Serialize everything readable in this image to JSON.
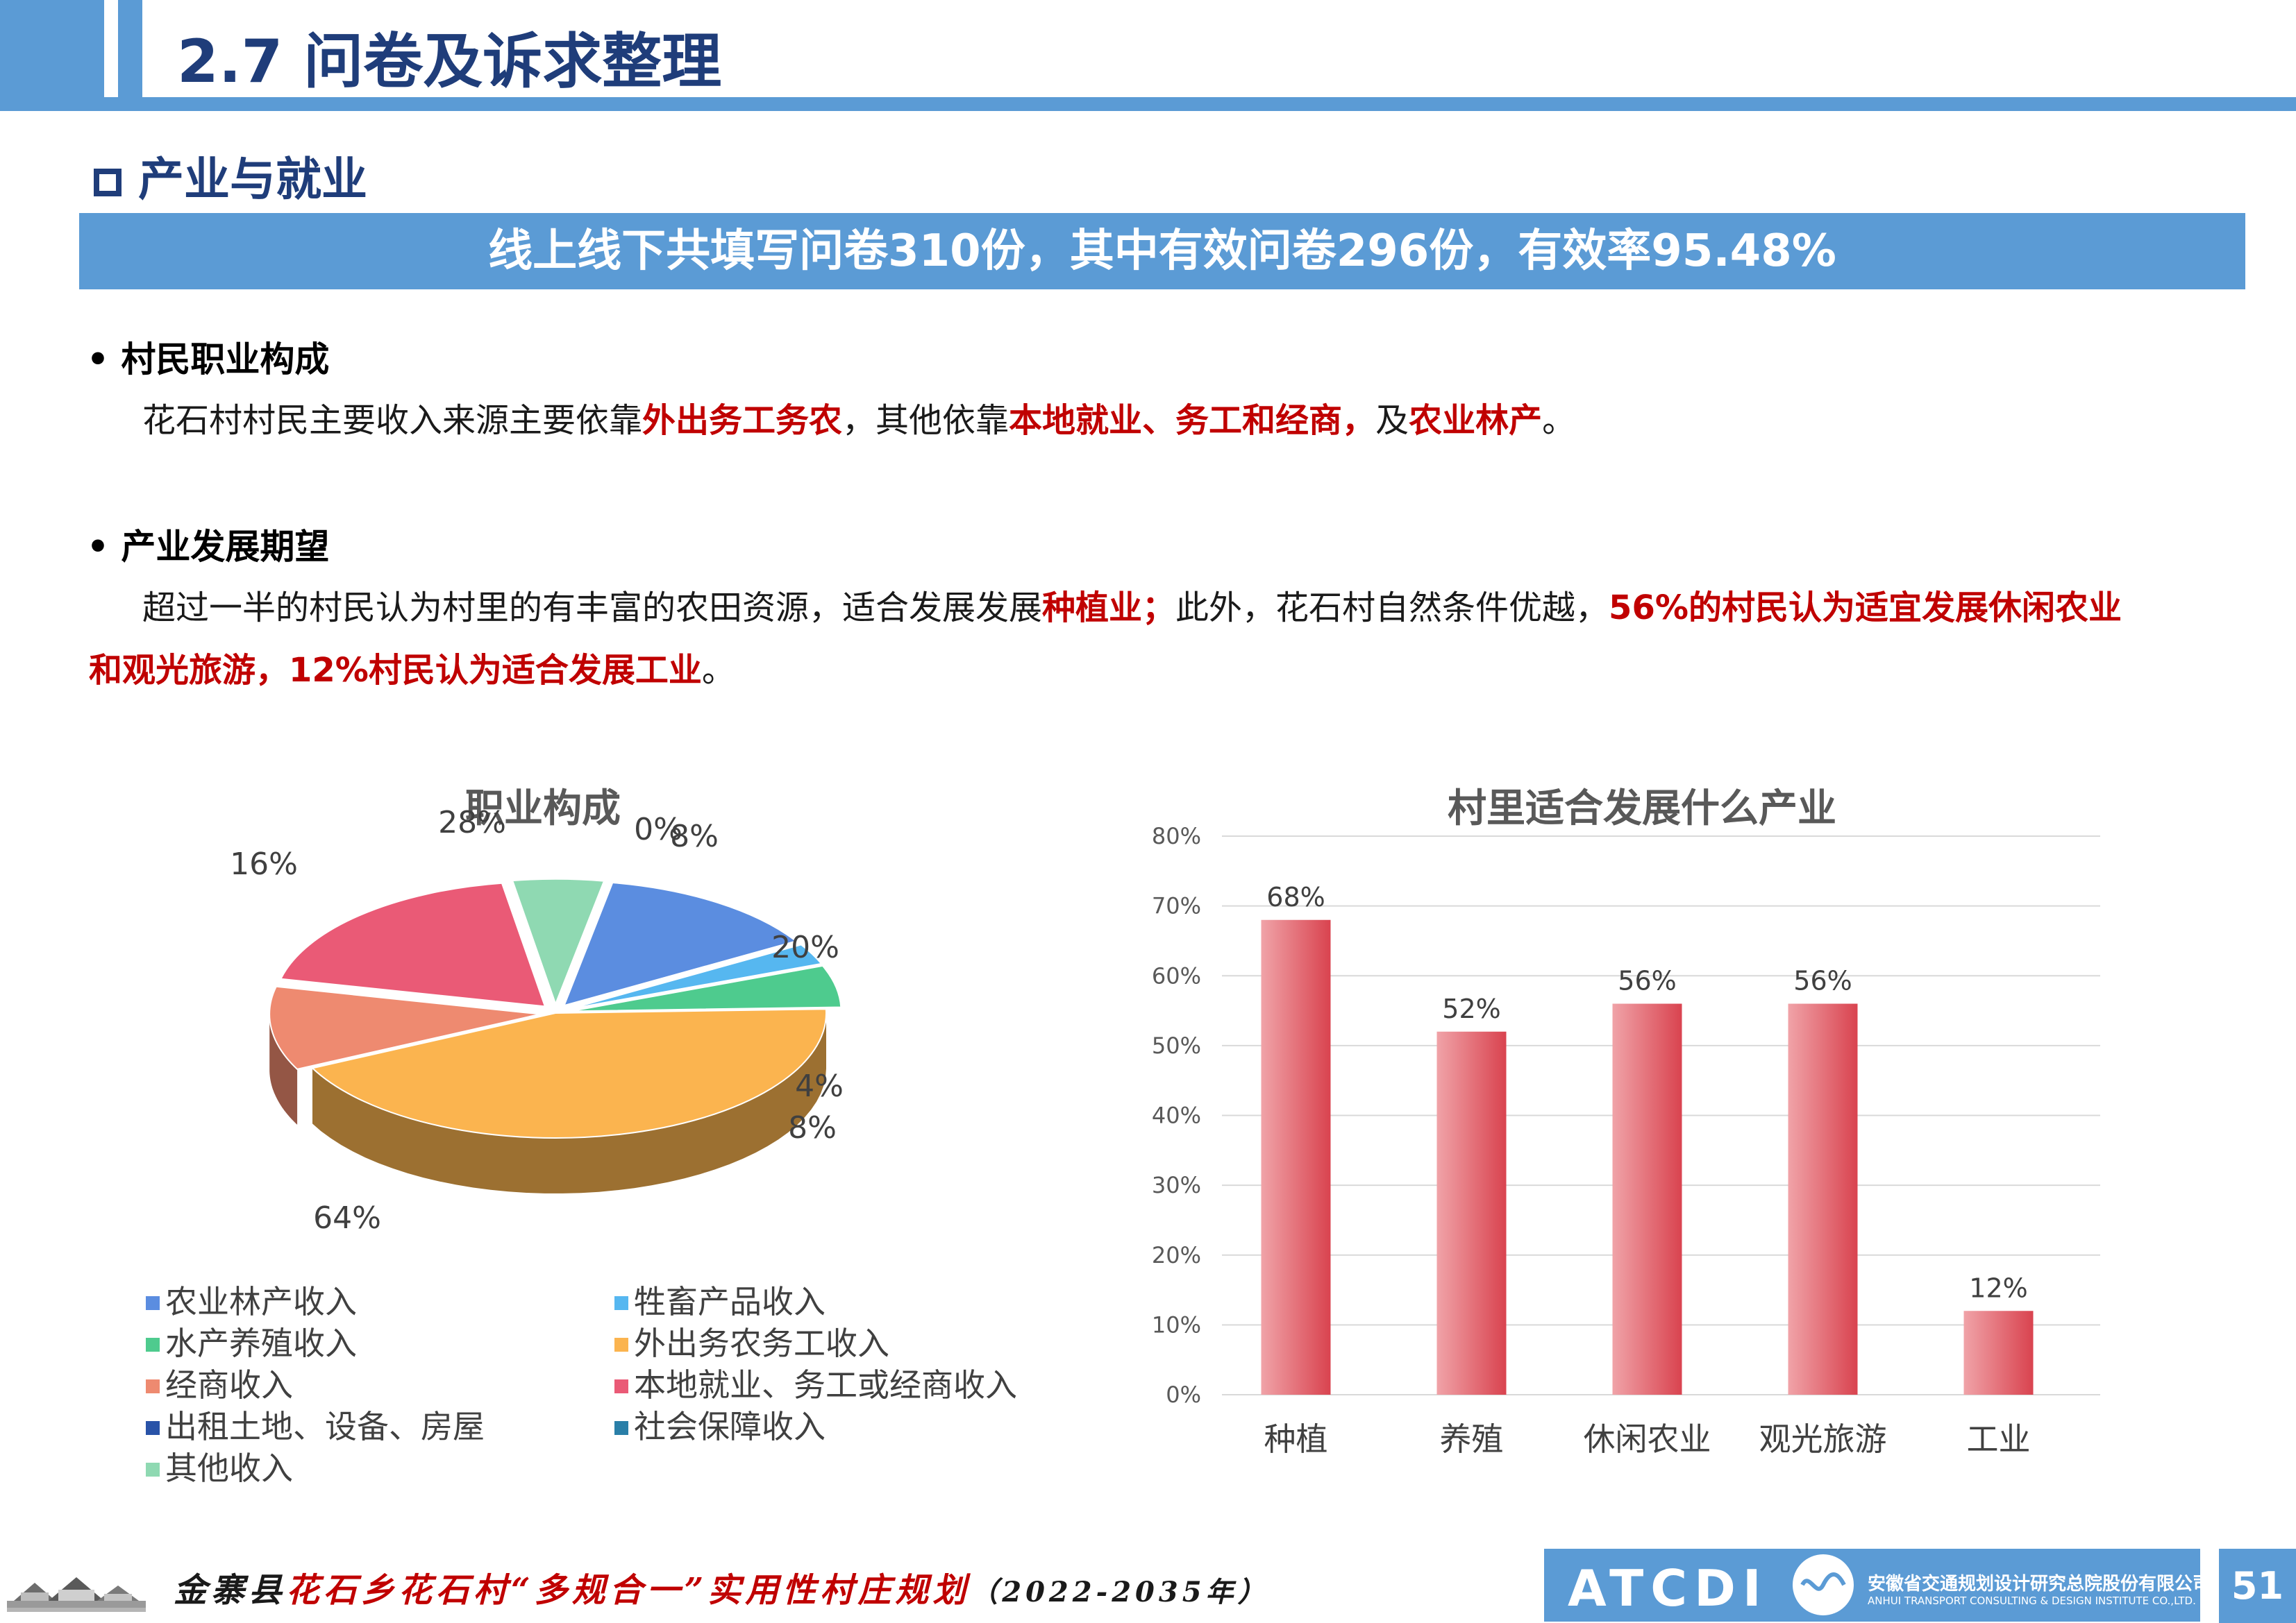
{
  "header": {
    "title": "2.7 问卷及诉求整理"
  },
  "section": {
    "title": "产业与就业"
  },
  "banner": {
    "text": "线上线下共填写问卷310份，其中有效问卷296份，有效率95.48%"
  },
  "occupation": {
    "heading": "• 村民职业构成",
    "p1": "花石村村民主要收入来源主要依靠",
    "r1": "外出务工务农",
    "p2": "，其他依靠",
    "r2": "本地就业、务工和经商，",
    "p3": "及",
    "r3": "农业林产",
    "p4": "。"
  },
  "expectation": {
    "heading": "• 产业发展期望",
    "p1": "超过一半的村民认为村里的有丰富的农田资源，适合发展发展",
    "r1": "种植业；",
    "p2": "此外，花石村自然条件优越，",
    "r2": "56%的村民认为适宜发展休闲农业",
    "r3": "和观光旅游，12%村民认为适合发展工业",
    "p3": "。"
  },
  "chart_data": [
    {
      "type": "pie",
      "title": "职业构成",
      "labels": [
        "农业林产收入",
        "牲畜产品收入",
        "水产养殖收入",
        "外出务农务工收入",
        "经商收入",
        "本地就业、务工或经商收入",
        "出租土地、设备、房屋",
        "社会保障收入",
        "其他收入"
      ],
      "values": [
        20,
        4,
        8,
        64,
        16,
        28,
        0,
        0,
        8
      ],
      "value_labels": [
        "20%",
        "4%",
        "8%",
        "64%",
        "16%",
        "28%",
        "0%",
        "",
        "8%"
      ],
      "colors": [
        "#5b8de0",
        "#56b7f0",
        "#4ecb8e",
        "#fbb44f",
        "#ee8a70",
        "#ea5a76",
        "#2953a8",
        "#2a7fa8",
        "#8fd9b2"
      ],
      "legend": "bottom"
    },
    {
      "type": "bar",
      "title": "村里适合发展什么产业",
      "categories": [
        "种植",
        "养殖",
        "休闲农业",
        "观光旅游",
        "工业"
      ],
      "values": [
        68,
        52,
        56,
        56,
        12
      ],
      "value_labels": [
        "68%",
        "52%",
        "56%",
        "56%",
        "12%"
      ],
      "ylim": [
        0,
        80
      ],
      "yticks": [
        "0%",
        "10%",
        "20%",
        "30%",
        "40%",
        "50%",
        "60%",
        "70%",
        "80%"
      ],
      "bar_color": "#d9434f",
      "grid": true
    }
  ],
  "footer": {
    "project_a": "金寨县",
    "project_b": "花石乡花石村",
    "project_c": "“多规合一”实用性村庄规划",
    "project_d": "（2022-2035年）",
    "logo_text": "ATCDI",
    "company_cn": "安徽省交通规划设计研究总院股份有限公司",
    "company_en": "ANHUI TRANSPORT CONSULTING & DESIGN INSTITUTE CO.,LTD.",
    "page_number": "51"
  }
}
